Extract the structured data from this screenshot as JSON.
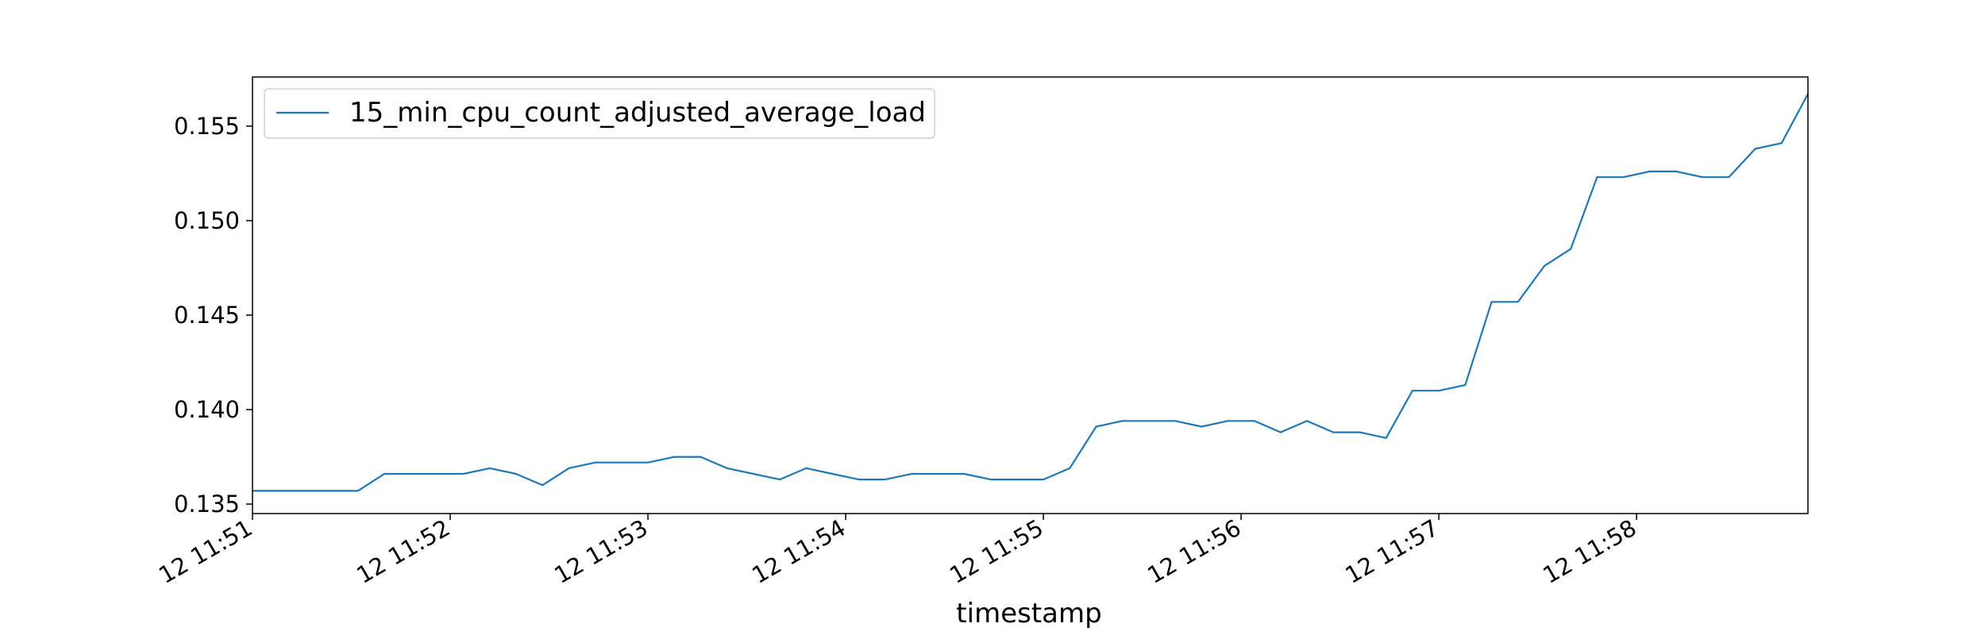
{
  "chart_data": {
    "type": "line",
    "title": "",
    "xlabel": "timestamp",
    "ylabel": "",
    "x_tick_labels": [
      "12 11:51",
      "12 11:52",
      "12 11:53",
      "12 11:54",
      "12 11:55",
      "12 11:56",
      "12 11:57",
      "12 11:58"
    ],
    "y_tick_labels": [
      "0.135",
      "0.140",
      "0.145",
      "0.150",
      "0.155"
    ],
    "ylim": [
      0.1345,
      0.1576
    ],
    "legend": {
      "position": "top-left"
    },
    "grid": false,
    "series": [
      {
        "name": "15_min_cpu_count_adjusted_average_load",
        "color": "#1f77b4",
        "x": [
          "11:51:00",
          "11:51:08",
          "11:51:16",
          "11:51:24",
          "11:51:32",
          "11:51:40",
          "11:51:48",
          "11:51:56",
          "11:52:04",
          "11:52:12",
          "11:52:20",
          "11:52:28",
          "11:52:36",
          "11:52:44",
          "11:52:52",
          "11:53:00",
          "11:53:08",
          "11:53:16",
          "11:53:24",
          "11:53:32",
          "11:53:40",
          "11:53:48",
          "11:53:56",
          "11:54:04",
          "11:54:12",
          "11:54:20",
          "11:54:28",
          "11:54:36",
          "11:54:44",
          "11:54:52",
          "11:55:00",
          "11:55:08",
          "11:55:16",
          "11:55:24",
          "11:55:32",
          "11:55:40",
          "11:55:48",
          "11:55:56",
          "11:56:04",
          "11:56:12",
          "11:56:20",
          "11:56:28",
          "11:56:36",
          "11:56:44",
          "11:56:52",
          "11:57:00",
          "11:57:08",
          "11:57:16",
          "11:57:24",
          "11:57:32",
          "11:57:40",
          "11:57:48",
          "11:57:56",
          "11:58:04",
          "11:58:12",
          "11:58:20",
          "11:58:28",
          "11:58:36",
          "11:58:44",
          "11:58:52"
        ],
        "values": [
          0.1357,
          0.1357,
          0.1357,
          0.1357,
          0.1357,
          0.1366,
          0.1366,
          0.1366,
          0.1366,
          0.1369,
          0.1366,
          0.136,
          0.1369,
          0.1372,
          0.1372,
          0.1372,
          0.1375,
          0.1375,
          0.1369,
          0.1366,
          0.1363,
          0.1369,
          0.1366,
          0.1363,
          0.1363,
          0.1366,
          0.1366,
          0.1366,
          0.1363,
          0.1363,
          0.1363,
          0.1369,
          0.1391,
          0.1394,
          0.1394,
          0.1394,
          0.1391,
          0.1394,
          0.1394,
          0.1388,
          0.1394,
          0.1388,
          0.1388,
          0.1385,
          0.141,
          0.141,
          0.1413,
          0.1457,
          0.1457,
          0.1476,
          0.1485,
          0.1523,
          0.1523,
          0.1526,
          0.1526,
          0.1523,
          0.1523,
          0.1538,
          0.1541,
          0.1567
        ]
      }
    ]
  }
}
